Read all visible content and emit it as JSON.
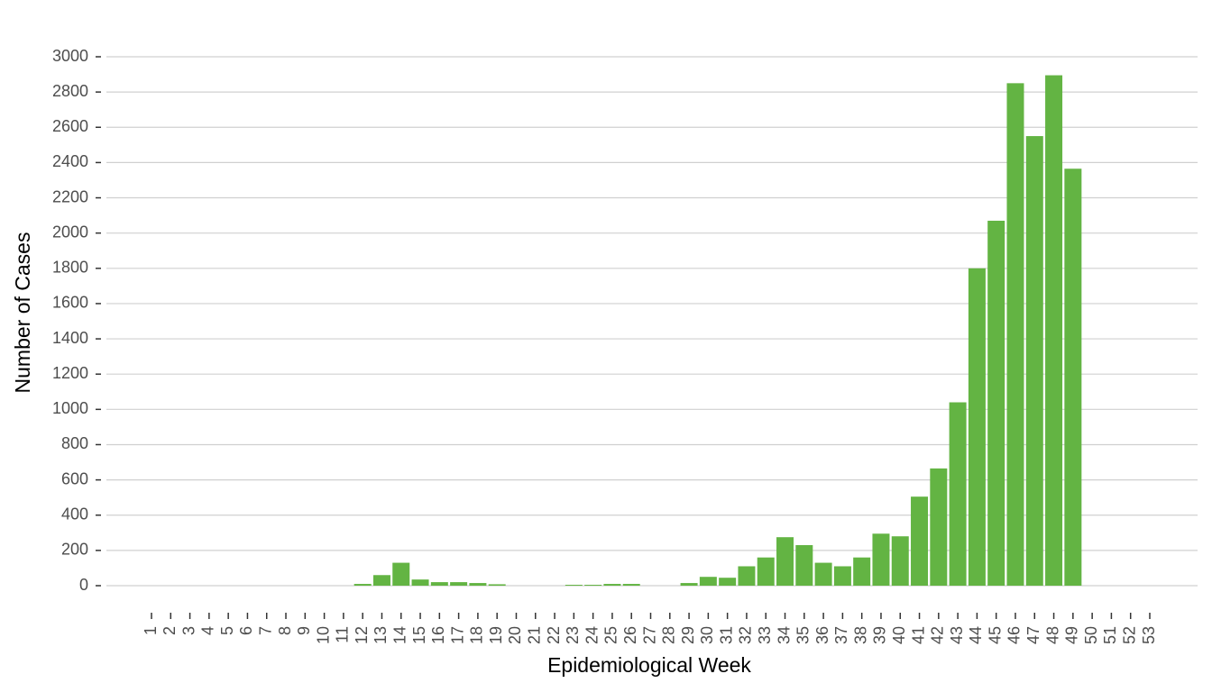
{
  "chart_data": {
    "type": "bar",
    "x_label": "Epidemiological Week",
    "y_label": "Number of Cases",
    "categories": [
      "1",
      "2",
      "3",
      "4",
      "5",
      "6",
      "7",
      "8",
      "9",
      "10",
      "11",
      "12",
      "13",
      "14",
      "15",
      "16",
      "17",
      "18",
      "19",
      "20",
      "21",
      "22",
      "23",
      "24",
      "25",
      "26",
      "27",
      "28",
      "29",
      "30",
      "31",
      "32",
      "33",
      "34",
      "35",
      "36",
      "37",
      "38",
      "39",
      "40",
      "41",
      "42",
      "43",
      "44",
      "45",
      "46",
      "47",
      "48",
      "49",
      "50",
      "51",
      "52",
      "53"
    ],
    "values": [
      0,
      0,
      0,
      0,
      0,
      0,
      0,
      0,
      0,
      0,
      0,
      10,
      60,
      130,
      35,
      20,
      20,
      15,
      8,
      0,
      0,
      0,
      5,
      5,
      10,
      10,
      0,
      0,
      15,
      50,
      45,
      110,
      160,
      275,
      230,
      130,
      110,
      160,
      295,
      280,
      505,
      665,
      1040,
      1800,
      2070,
      2850,
      2550,
      2895,
      2365,
      0,
      0,
      0,
      0
    ],
    "color": "#63b443",
    "ylim": [
      0,
      3000
    ],
    "yticks": [
      0,
      200,
      400,
      600,
      800,
      1000,
      1200,
      1400,
      1600,
      1800,
      2000,
      2200,
      2400,
      2600,
      2800,
      3000
    ],
    "grid": true
  }
}
